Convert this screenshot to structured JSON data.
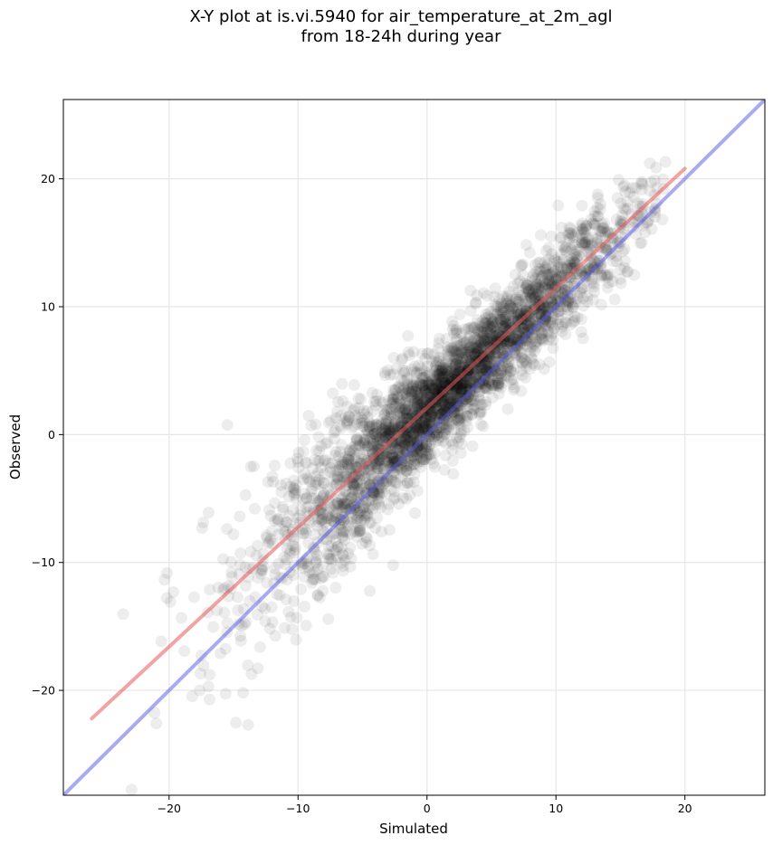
{
  "chart_data": {
    "type": "scatter",
    "title_line1": "X-Y plot at is.vi.5940 for air_temperature_at_2m_agl",
    "title_line2": "from 18-24h during year",
    "xlabel": "Simulated",
    "ylabel": "Observed",
    "xlim": [
      -28.2,
      26.2
    ],
    "ylim": [
      -28.2,
      26.2
    ],
    "xticks": [
      -20,
      -10,
      0,
      10,
      20
    ],
    "yticks": [
      -20,
      -10,
      0,
      10,
      20
    ],
    "xtick_labels": [
      "−20",
      "−10",
      "0",
      "10",
      "20"
    ],
    "ytick_labels": [
      "−20",
      "−10",
      "0",
      "10",
      "20"
    ],
    "grid": true,
    "point_color": "#000000",
    "fit_line": {
      "color": "#e85a5a",
      "x": [
        -26,
        20
      ],
      "y": [
        -22.2,
        20.8
      ]
    },
    "identity_line": {
      "color": "#5555e8",
      "x": [
        -28.2,
        26.2
      ],
      "y": [
        -28.2,
        26.2
      ]
    },
    "scatter_model": {
      "n_points": 3200,
      "slope": 0.935,
      "intercept": 1.8,
      "x_mean": 1.5,
      "x_sd": 7.2,
      "x_min": -26,
      "x_max": 18.5,
      "noise_sd": 2.0
    }
  }
}
